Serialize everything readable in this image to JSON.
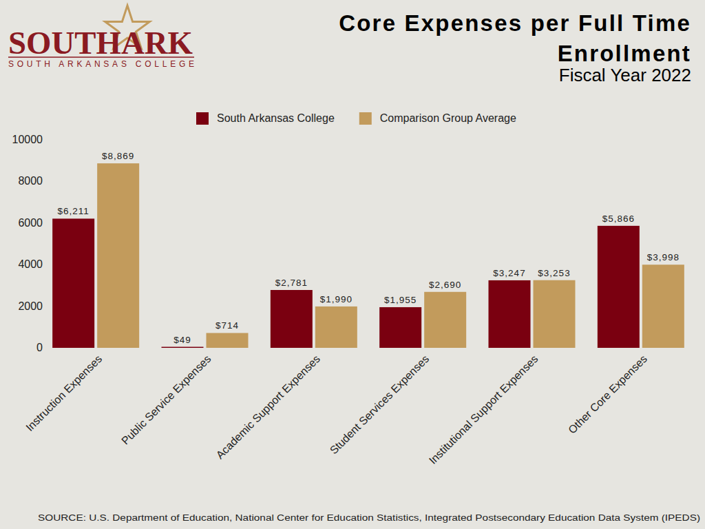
{
  "logo": {
    "text": "SOUTHARK",
    "subtitle": "SOUTH ARKANSAS COLLEGE"
  },
  "chart_data": {
    "type": "bar",
    "title": "Core Expenses per Full Time Enrollment",
    "subtitle": "Fiscal Year 2022",
    "source": "SOURCE: U.S. Department of Education, National Center for Education Statistics, Integrated Postsecondary Education Data System (IPEDS)",
    "categories": [
      "Instruction Expenses",
      "Public Service Expenses",
      "Academic Support Expenses",
      "Student Services Expenses",
      "Institutional Support Expenses",
      "Other Core Expenses"
    ],
    "series": [
      {
        "name": "South Arkansas College",
        "color": "#7a0010",
        "values": [
          6211,
          49,
          2781,
          1955,
          3247,
          5866
        ],
        "value_labels": [
          "$6,211",
          "$49",
          "$2,781",
          "$1,955",
          "$3,247",
          "$5,866"
        ]
      },
      {
        "name": "Comparison Group Average",
        "color": "#c29b5c",
        "values": [
          8869,
          714,
          1990,
          2690,
          3253,
          3998
        ],
        "value_labels": [
          "$8,869",
          "$714",
          "$1,990",
          "$2,690",
          "$3,253",
          "$3,998"
        ]
      }
    ],
    "ylim": [
      0,
      10000
    ],
    "yticks": [
      0,
      2000,
      4000,
      6000,
      8000,
      10000
    ],
    "grid": false,
    "legend": "top",
    "data_labels": true
  }
}
